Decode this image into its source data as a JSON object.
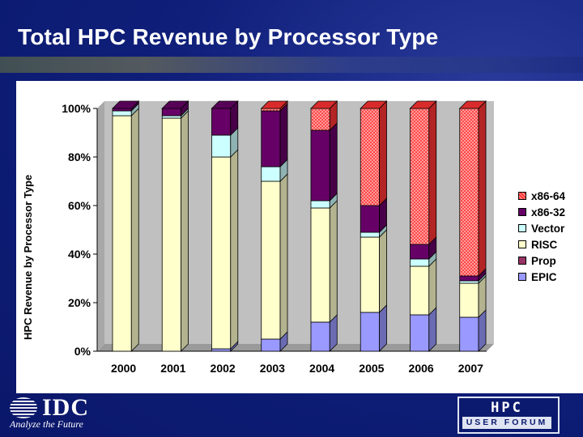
{
  "slide": {
    "title": "Total HPC Revenue by Processor Type",
    "footer": {
      "company": "IDC",
      "tagline": "Analyze the Future",
      "event_logo_top": "HPC",
      "event_logo_bottom": "USER FORUM"
    }
  },
  "chart_data": {
    "type": "bar",
    "stacked": true,
    "percent": true,
    "title": "",
    "xlabel": "",
    "ylabel": "HPC Revenue by Processor Type",
    "ylim": [
      0,
      100
    ],
    "yticks": [
      "0%",
      "20%",
      "40%",
      "60%",
      "80%",
      "100%"
    ],
    "categories": [
      "2000",
      "2001",
      "2002",
      "2003",
      "2004",
      "2005",
      "2006",
      "2007"
    ],
    "series": [
      {
        "name": "EPIC",
        "color": "#9999ff",
        "values": [
          0,
          0,
          1,
          5,
          12,
          16,
          15,
          14
        ]
      },
      {
        "name": "Prop",
        "color": "#993366",
        "values": [
          0,
          0,
          0,
          0,
          0,
          0,
          0,
          0
        ]
      },
      {
        "name": "RISC",
        "color": "#ffffcc",
        "values": [
          97,
          96,
          79,
          65,
          47,
          31,
          20,
          14
        ]
      },
      {
        "name": "Vector",
        "color": "#ccffff",
        "values": [
          2,
          1,
          9,
          6,
          3,
          2,
          3,
          1
        ]
      },
      {
        "name": "x86-32",
        "color": "#660066",
        "values": [
          1,
          3,
          11,
          23,
          29,
          11,
          6,
          2
        ]
      },
      {
        "name": "x86-64",
        "color": "#ff3333",
        "values": [
          0,
          0,
          0,
          1,
          9,
          40,
          56,
          69
        ]
      }
    ],
    "legend_order": [
      "x86-64",
      "x86-32",
      "Vector",
      "RISC",
      "Prop",
      "EPIC"
    ],
    "legend_position": "right",
    "grid": false
  }
}
